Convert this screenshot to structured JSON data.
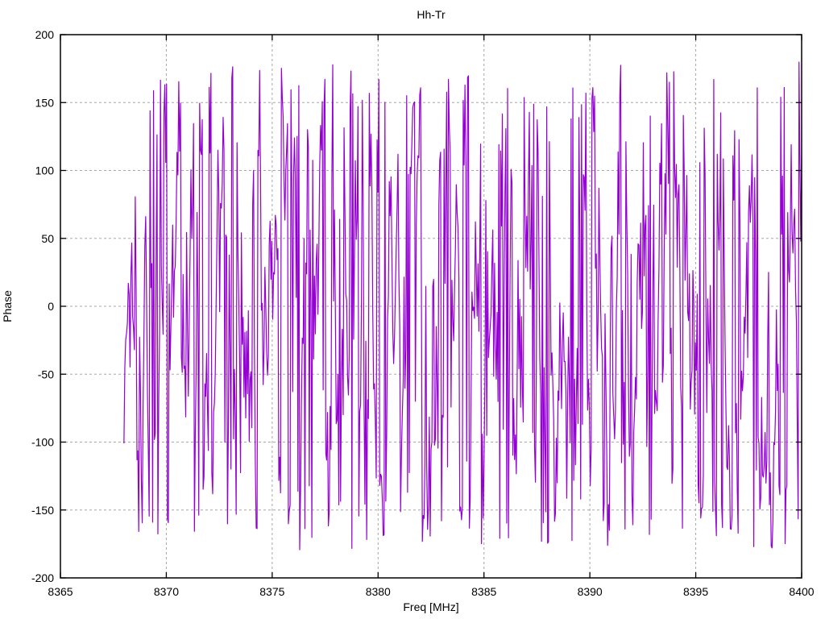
{
  "window": {
    "background": "#ffffff"
  },
  "chart_data": {
    "type": "line",
    "title": "Hh-Tr",
    "xlabel": "Freq [MHz]",
    "ylabel": "Phase",
    "xlim": [
      8365,
      8400
    ],
    "ylim": [
      -200,
      200
    ],
    "x_ticks": [
      8365,
      8370,
      8375,
      8380,
      8385,
      8390,
      8395,
      8400
    ],
    "x_tick_labels": [
      "8365",
      "8370",
      "8375",
      "8380",
      "8385",
      "8390",
      "8395",
      "8400"
    ],
    "y_ticks": [
      -200,
      -150,
      -100,
      -50,
      0,
      50,
      100,
      150,
      200
    ],
    "y_tick_labels": [
      "-200",
      "-150",
      "-100",
      "-50",
      "0",
      "50",
      "100",
      "150",
      "200"
    ],
    "grid": {
      "show": true,
      "color": "#a8a8a8",
      "style": "dashed",
      "on_every_major_tick": true
    },
    "legend": {
      "show": false
    },
    "axis_color": "#000000",
    "text_color": "#000000",
    "tick_style": "inward-mirrored",
    "series": [
      {
        "name": "Hh-Tr",
        "color": "#9400D3",
        "x_start": 8368.0,
        "x_end": 8400.0,
        "n_points": 780,
        "pattern": "wrapped-phase-noise",
        "description": "Densely sampled wrapped phase trace; values jump pseudo-randomly across nearly the full -180..180 range with intermittent local clusters",
        "y_min_observed": -181,
        "y_max_observed": 179,
        "synthesis": {
          "seed": 1337,
          "local_prob": 0.55,
          "local_step": 90,
          "jump_amp": 178,
          "wrap_range": 360
        }
      }
    ]
  }
}
